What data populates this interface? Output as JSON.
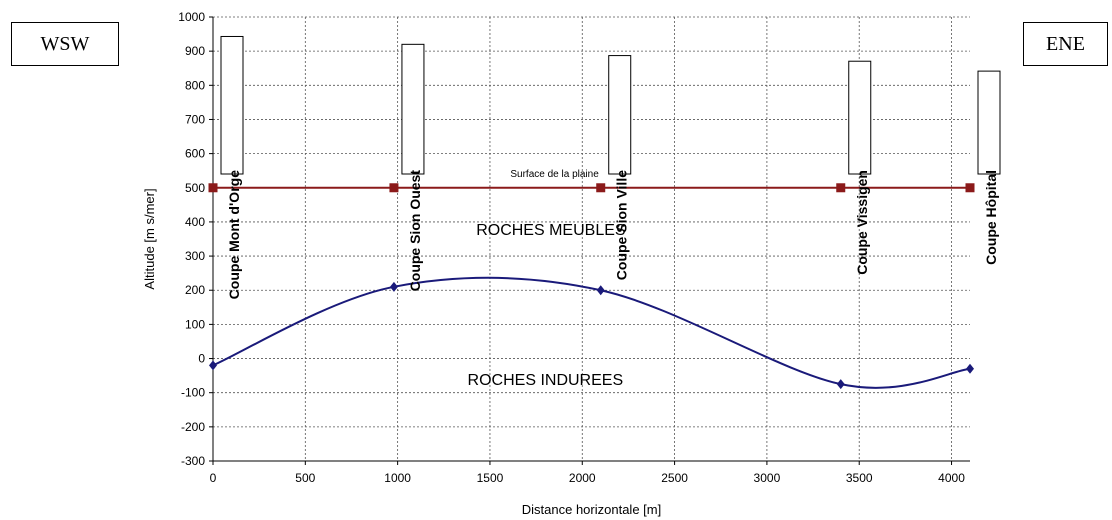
{
  "direction_left": "WSW",
  "direction_right": "ENE",
  "chart_data": {
    "type": "line",
    "xlabel": "Distance horizontale [m]",
    "ylabel": "Altitude [m s/mer]",
    "xlim": [
      0,
      4100
    ],
    "ylim": [
      -300,
      1000
    ],
    "xticks": [
      0,
      500,
      1000,
      1500,
      2000,
      2500,
      3000,
      3500,
      4000
    ],
    "yticks": [
      -300,
      -200,
      -100,
      0,
      100,
      200,
      300,
      400,
      500,
      600,
      700,
      800,
      900,
      1000
    ],
    "grid": true,
    "series": [
      {
        "name": "Surface de la plaine",
        "color": "#8b1a1a",
        "marker": "square",
        "points": [
          [
            0,
            500
          ],
          [
            980,
            500
          ],
          [
            2100,
            500
          ],
          [
            3400,
            500
          ],
          [
            4100,
            500
          ]
        ]
      },
      {
        "color": "#1a1a7a",
        "marker": "diamond",
        "smooth": true,
        "points": [
          [
            0,
            -20
          ],
          [
            980,
            210
          ],
          [
            2100,
            200
          ],
          [
            3400,
            -75
          ],
          [
            4100,
            -30
          ]
        ]
      }
    ],
    "sections": [
      {
        "label": "Coupe Mont d'Orge",
        "x": 0
      },
      {
        "label": "Coupe Sion Ouest",
        "x": 980
      },
      {
        "label": "Coupe Sion Ville",
        "x": 2100
      },
      {
        "label": "Coupe Vissigen",
        "x": 3400
      },
      {
        "label": "Coupe Hôpital",
        "x": 4100
      }
    ],
    "annotations": [
      {
        "text": "Surface de la plaine",
        "x": 1850,
        "y": 540
      },
      {
        "text": "ROCHES MEUBLES",
        "x": 1830,
        "y": 380
      },
      {
        "text": "ROCHES INDUREES",
        "x": 1800,
        "y": -60
      }
    ]
  }
}
